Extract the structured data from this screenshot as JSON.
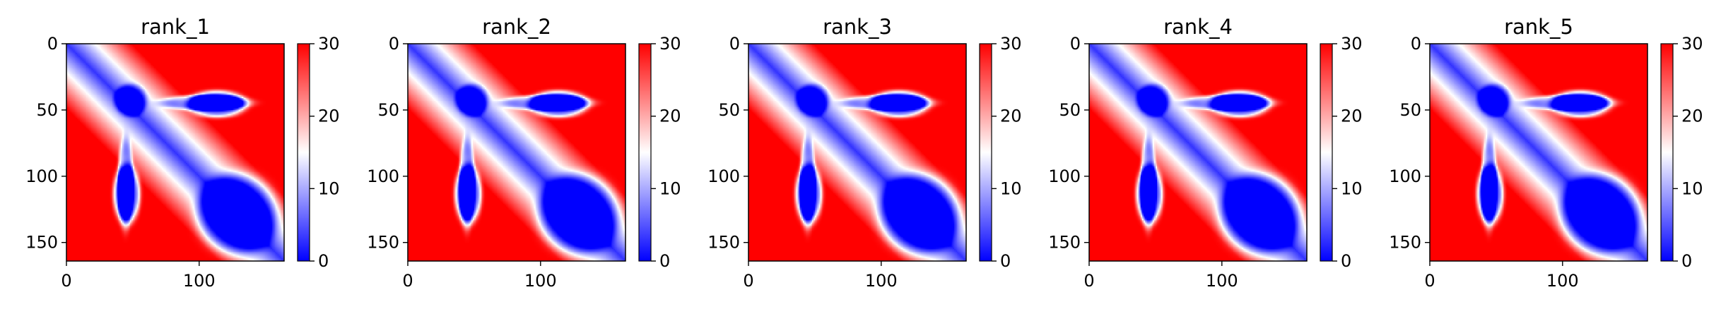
{
  "chart_data": [
    {
      "type": "heatmap",
      "title": "rank_1",
      "x_ticks": [
        "0",
        "100"
      ],
      "y_ticks": [
        "0",
        "50",
        "100",
        "150"
      ],
      "xlim": [
        0,
        164
      ],
      "ylim": [
        164,
        0
      ],
      "colorbar": {
        "ticks": [
          "0",
          "10",
          "20",
          "30"
        ],
        "range": [
          0,
          30
        ],
        "colormap": "bwr",
        "colors": [
          "#0000ff",
          "#ffffff",
          "#ff0000"
        ]
      }
    },
    {
      "type": "heatmap",
      "title": "rank_2",
      "x_ticks": [
        "0",
        "100"
      ],
      "y_ticks": [
        "0",
        "50",
        "100",
        "150"
      ],
      "xlim": [
        0,
        164
      ],
      "ylim": [
        164,
        0
      ],
      "colorbar": {
        "ticks": [
          "0",
          "10",
          "20",
          "30"
        ],
        "range": [
          0,
          30
        ],
        "colormap": "bwr",
        "colors": [
          "#0000ff",
          "#ffffff",
          "#ff0000"
        ]
      }
    },
    {
      "type": "heatmap",
      "title": "rank_3",
      "x_ticks": [
        "0",
        "100"
      ],
      "y_ticks": [
        "0",
        "50",
        "100",
        "150"
      ],
      "xlim": [
        0,
        164
      ],
      "ylim": [
        164,
        0
      ],
      "colorbar": {
        "ticks": [
          "0",
          "10",
          "20",
          "30"
        ],
        "range": [
          0,
          30
        ],
        "colormap": "bwr",
        "colors": [
          "#0000ff",
          "#ffffff",
          "#ff0000"
        ]
      }
    },
    {
      "type": "heatmap",
      "title": "rank_4",
      "x_ticks": [
        "0",
        "100"
      ],
      "y_ticks": [
        "0",
        "50",
        "100",
        "150"
      ],
      "xlim": [
        0,
        164
      ],
      "ylim": [
        164,
        0
      ],
      "colorbar": {
        "ticks": [
          "0",
          "10",
          "20",
          "30"
        ],
        "range": [
          0,
          30
        ],
        "colormap": "bwr",
        "colors": [
          "#0000ff",
          "#ffffff",
          "#ff0000"
        ]
      }
    },
    {
      "type": "heatmap",
      "title": "rank_5",
      "x_ticks": [
        "0",
        "100"
      ],
      "y_ticks": [
        "0",
        "50",
        "100",
        "150"
      ],
      "xlim": [
        0,
        164
      ],
      "ylim": [
        164,
        0
      ],
      "colorbar": {
        "ticks": [
          "0",
          "10",
          "20",
          "30"
        ],
        "range": [
          0,
          30
        ],
        "colormap": "bwr",
        "colors": [
          "#0000ff",
          "#ffffff",
          "#ff0000"
        ]
      }
    }
  ]
}
